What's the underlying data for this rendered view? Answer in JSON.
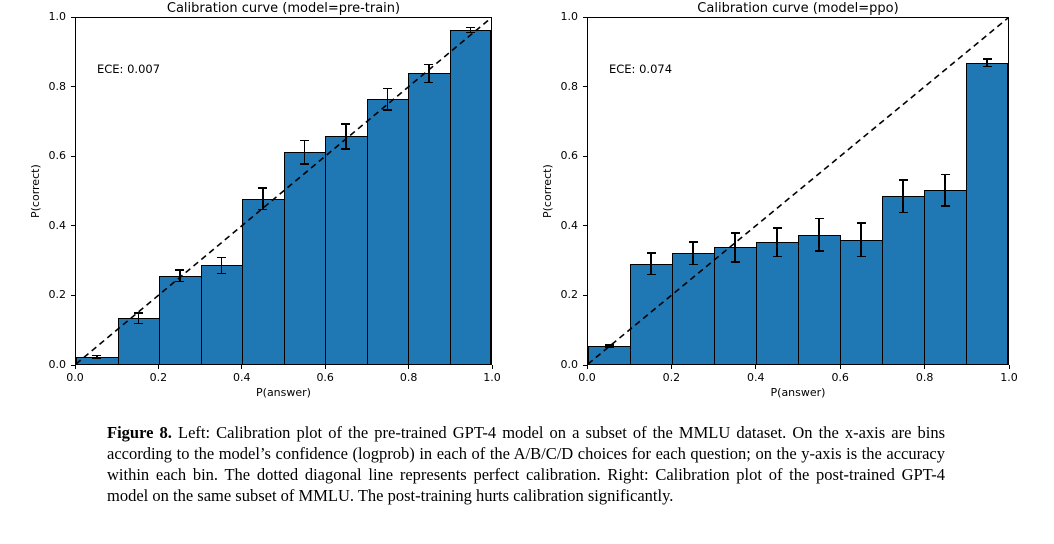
{
  "colors": {
    "bar_fill": "#1f77b4",
    "bar_edge": "#000000",
    "axis": "#000000",
    "error_bar": "#000000",
    "diagonal": "#000000",
    "text": "#000000",
    "background": "#ffffff"
  },
  "chart_data": [
    {
      "type": "bar",
      "title": "Calibration curve (model=pre-train)",
      "annotation": "ECE: 0.007",
      "xlabel": "P(answer)",
      "ylabel": "P(correct)",
      "xlim": [
        0.0,
        1.0
      ],
      "ylim": [
        0.0,
        1.0
      ],
      "grid": false,
      "legend": "none",
      "diagonal_reference_line": true,
      "xticks": [
        "0.0",
        "0.2",
        "0.4",
        "0.6",
        "0.8",
        "1.0"
      ],
      "yticks": [
        "0.0",
        "0.2",
        "0.4",
        "0.6",
        "0.8",
        "1.0"
      ],
      "bin_width": 0.1,
      "bin_centers": [
        0.05,
        0.15,
        0.25,
        0.35,
        0.45,
        0.55,
        0.65,
        0.75,
        0.85,
        0.95
      ],
      "values": [
        0.02,
        0.132,
        0.255,
        0.285,
        0.477,
        0.612,
        0.658,
        0.765,
        0.84,
        0.965
      ],
      "errors": [
        0.004,
        0.015,
        0.016,
        0.023,
        0.031,
        0.034,
        0.036,
        0.031,
        0.026,
        0.007
      ]
    },
    {
      "type": "bar",
      "title": "Calibration curve (model=ppo)",
      "annotation": "ECE: 0.074",
      "xlabel": "P(answer)",
      "ylabel": "P(correct)",
      "xlim": [
        0.0,
        1.0
      ],
      "ylim": [
        0.0,
        1.0
      ],
      "grid": false,
      "legend": "none",
      "diagonal_reference_line": true,
      "xticks": [
        "0.0",
        "0.2",
        "0.4",
        "0.6",
        "0.8",
        "1.0"
      ],
      "yticks": [
        "0.0",
        "0.2",
        "0.4",
        "0.6",
        "0.8",
        "1.0"
      ],
      "bin_width": 0.1,
      "bin_centers": [
        0.05,
        0.15,
        0.25,
        0.35,
        0.45,
        0.55,
        0.65,
        0.75,
        0.85,
        0.95
      ],
      "values": [
        0.051,
        0.29,
        0.32,
        0.337,
        0.352,
        0.373,
        0.359,
        0.485,
        0.502,
        0.871
      ],
      "errors": [
        0.004,
        0.031,
        0.033,
        0.042,
        0.041,
        0.047,
        0.048,
        0.047,
        0.046,
        0.011
      ]
    }
  ],
  "caption": {
    "label": "Figure 8.",
    "text": " Left: Calibration plot of the pre-trained GPT-4 model on a subset of the MMLU dataset. On the x-axis are bins according to the model’s confidence (logprob) in each of the A/B/C/D choices for each question; on the y-axis is the accuracy within each bin. The dotted diagonal line represents perfect calibration. Right: Calibration plot of the post-trained GPT-4 model on the same subset of MMLU. The post-training hurts calibration significantly."
  }
}
